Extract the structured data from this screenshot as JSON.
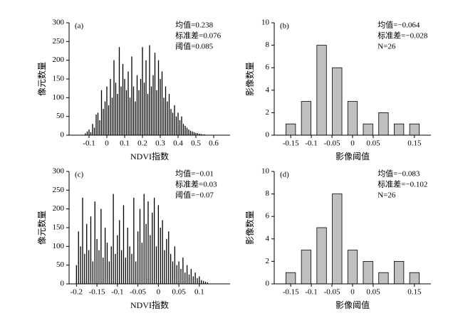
{
  "chart_data": [
    {
      "type": "spike",
      "panel_label": "(a)",
      "stats": [
        "均值=0.238",
        "标准差=0.076",
        "阈值=0.085"
      ],
      "x_label": "NDVI指数",
      "y_label": "像元数量",
      "x": [
        -0.12,
        -0.11,
        -0.1,
        -0.09,
        -0.08,
        -0.07,
        -0.06,
        -0.05,
        -0.04,
        -0.03,
        -0.02,
        -0.01,
        0,
        0.01,
        0.02,
        0.03,
        0.04,
        0.05,
        0.06,
        0.07,
        0.08,
        0.09,
        0.1,
        0.11,
        0.12,
        0.13,
        0.14,
        0.15,
        0.16,
        0.17,
        0.18,
        0.19,
        0.2,
        0.21,
        0.22,
        0.23,
        0.24,
        0.25,
        0.26,
        0.27,
        0.28,
        0.29,
        0.3,
        0.31,
        0.32,
        0.33,
        0.34,
        0.35,
        0.36,
        0.37,
        0.38,
        0.39,
        0.4,
        0.41,
        0.42,
        0.43,
        0.44,
        0.45,
        0.46,
        0.47,
        0.48,
        0.49,
        0.5,
        0.51,
        0.52,
        0.53,
        0.54,
        0.55
      ],
      "values": [
        5,
        10,
        15,
        8,
        30,
        20,
        55,
        60,
        40,
        120,
        70,
        90,
        130,
        80,
        150,
        100,
        200,
        140,
        110,
        235,
        130,
        190,
        150,
        120,
        170,
        100,
        210,
        130,
        90,
        160,
        120,
        150,
        235,
        140,
        200,
        110,
        240,
        130,
        160,
        220,
        120,
        200,
        150,
        170,
        100,
        130,
        90,
        110,
        70,
        60,
        80,
        50,
        60,
        40,
        50,
        30,
        25,
        20,
        15,
        12,
        10,
        8,
        6,
        5,
        4,
        3,
        2,
        2
      ],
      "color": "#000000",
      "xlim": [
        -0.212,
        0.692
      ],
      "xticks": [
        -0.1,
        0,
        0.1,
        0.2,
        0.3,
        0.4,
        0.5,
        0.6
      ],
      "ylim": [
        0,
        300
      ],
      "yticks": [
        0,
        50,
        100,
        150,
        200,
        250,
        300
      ]
    },
    {
      "type": "histogram",
      "panel_label": "(b)",
      "stats": [
        "均值=−0.064",
        "标准差=−0.028",
        "N=26"
      ],
      "x_label": "影像阈值",
      "y_label": "影像数量",
      "bins": [
        -0.16875,
        -0.13125,
        -0.09375,
        -0.05625,
        -0.01875,
        0.01875,
        0.05625,
        0.09375,
        0.13125,
        0.16875
      ],
      "values": [
        1,
        3,
        8,
        6,
        3,
        1,
        2,
        1,
        1
      ],
      "color": "#c0c0c0",
      "xlim": [
        -0.19,
        0.19
      ],
      "xticks": [
        -0.15,
        -0.1,
        -0.05,
        0,
        0.05,
        0.15
      ],
      "ylim": [
        0,
        10
      ],
      "yticks": [
        0,
        2,
        4,
        6,
        8,
        10
      ]
    },
    {
      "type": "spike",
      "panel_label": "(c)",
      "stats": [
        "均值=−0.01",
        "标准差=0.03",
        "阈值=−0.07"
      ],
      "x_label": "NDVI指数",
      "y_label": "像元数量",
      "x": [
        -0.2,
        -0.195,
        -0.19,
        -0.185,
        -0.18,
        -0.175,
        -0.17,
        -0.165,
        -0.16,
        -0.155,
        -0.15,
        -0.145,
        -0.14,
        -0.135,
        -0.13,
        -0.125,
        -0.12,
        -0.115,
        -0.11,
        -0.105,
        -0.1,
        -0.095,
        -0.09,
        -0.085,
        -0.08,
        -0.075,
        -0.07,
        -0.065,
        -0.06,
        -0.055,
        -0.05,
        -0.045,
        -0.04,
        -0.035,
        -0.03,
        -0.025,
        -0.02,
        -0.015,
        -0.01,
        -0.005,
        0,
        0.005,
        0.01,
        0.015,
        0.02,
        0.025,
        0.03,
        0.035,
        0.04,
        0.045,
        0.05,
        0.055,
        0.06,
        0.065,
        0.07,
        0.075,
        0.08,
        0.085,
        0.09,
        0.095,
        0.1,
        0.105,
        0.11,
        0.115,
        0.12
      ],
      "values": [
        50,
        140,
        100,
        230,
        80,
        160,
        90,
        180,
        60,
        220,
        120,
        90,
        200,
        70,
        150,
        110,
        60,
        100,
        240,
        80,
        130,
        170,
        90,
        210,
        70,
        150,
        100,
        80,
        230,
        60,
        140,
        200,
        110,
        240,
        160,
        220,
        130,
        190,
        230,
        100,
        210,
        150,
        170,
        90,
        120,
        140,
        80,
        60,
        100,
        50,
        60,
        40,
        70,
        30,
        50,
        25,
        40,
        20,
        30,
        15,
        20,
        10,
        8,
        6,
        4
      ],
      "color": "#000000",
      "xlim": [
        -0.218,
        0.175
      ],
      "xticks": [
        -0.2,
        -0.15,
        -0.1,
        -0.05,
        0,
        0.05,
        0.1
      ],
      "ylim": [
        0,
        300
      ],
      "yticks": [
        0,
        50,
        100,
        150,
        200,
        250,
        300
      ]
    },
    {
      "type": "histogram",
      "panel_label": "(d)",
      "stats": [
        "均值=−0.083",
        "标准差=−0.102",
        "N=26"
      ],
      "x_label": "影像阈值",
      "y_label": "影像数量",
      "bins": [
        -0.16875,
        -0.13125,
        -0.09375,
        -0.05625,
        -0.01875,
        0.01875,
        0.05625,
        0.09375,
        0.13125,
        0.16875
      ],
      "values": [
        1,
        3,
        5,
        8,
        3,
        2,
        1,
        2,
        1
      ],
      "color": "#c0c0c0",
      "xlim": [
        -0.19,
        0.19
      ],
      "xticks": [
        -0.15,
        -0.1,
        -0.05,
        0,
        0.05,
        0.15
      ],
      "ylim": [
        0,
        10
      ],
      "yticks": [
        0,
        2,
        4,
        6,
        8,
        10
      ]
    }
  ]
}
